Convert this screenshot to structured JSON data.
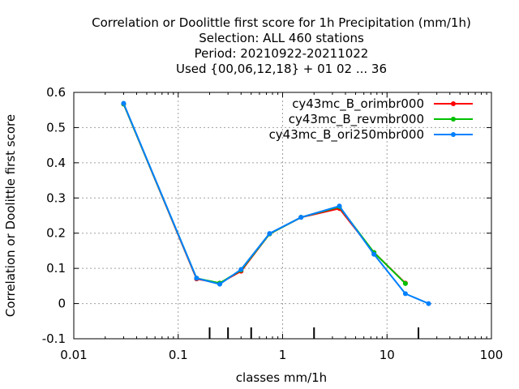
{
  "chart_data": {
    "type": "line",
    "title_lines": [
      "Correlation or Doolittle first score  for 1h Precipitation (mm/1h)",
      "Selection: ALL    460 stations",
      "Period: 20210922-20211022",
      "Used {00,06,12,18} + 01 02 ... 36"
    ],
    "xlabel": "classes mm/1h",
    "ylabel": "Correlation or Doolittle first score",
    "x_scale": "log",
    "xlim": [
      0.01,
      100
    ],
    "ylim": [
      -0.1,
      0.6
    ],
    "x_ticks": [
      0.01,
      0.1,
      1,
      10,
      100
    ],
    "x_tick_labels": [
      "0.01",
      "0.1",
      "1",
      "10",
      "100"
    ],
    "y_ticks": [
      -0.1,
      0,
      0.1,
      0.2,
      0.3,
      0.4,
      0.5,
      0.6
    ],
    "y_tick_labels": [
      "-0.1",
      "0",
      "0.1",
      "0.2",
      "0.3",
      "0.4",
      "0.5",
      "0.6"
    ],
    "grid": true,
    "legend_position": "top-right",
    "class_marks": [
      0.2,
      0.3,
      0.5,
      2,
      20
    ],
    "series": [
      {
        "name": "cy43mc_B_orimbr000",
        "color": "#ff0000",
        "x": [
          0.03,
          0.15,
          0.25,
          0.4,
          0.75,
          1.5,
          3.5,
          7.5,
          15
        ],
        "y": [
          0.567,
          0.07,
          0.058,
          0.092,
          0.198,
          0.245,
          0.27,
          0.145,
          0.058
        ]
      },
      {
        "name": "cy43mc_B_revmbr000",
        "color": "#00c000",
        "x": [
          0.03,
          0.15,
          0.25,
          0.4,
          0.75,
          1.5,
          3.5,
          7.5,
          15
        ],
        "y": [
          0.567,
          0.072,
          0.058,
          0.095,
          0.198,
          0.245,
          0.275,
          0.145,
          0.057
        ]
      },
      {
        "name": "cy43mc_B_ori250mbr000",
        "color": "#0080ff",
        "x": [
          0.03,
          0.15,
          0.25,
          0.4,
          0.75,
          1.5,
          3.5,
          7.5,
          15,
          25
        ],
        "y": [
          0.569,
          0.072,
          0.055,
          0.097,
          0.199,
          0.245,
          0.277,
          0.14,
          0.028,
          0.0
        ]
      }
    ]
  }
}
